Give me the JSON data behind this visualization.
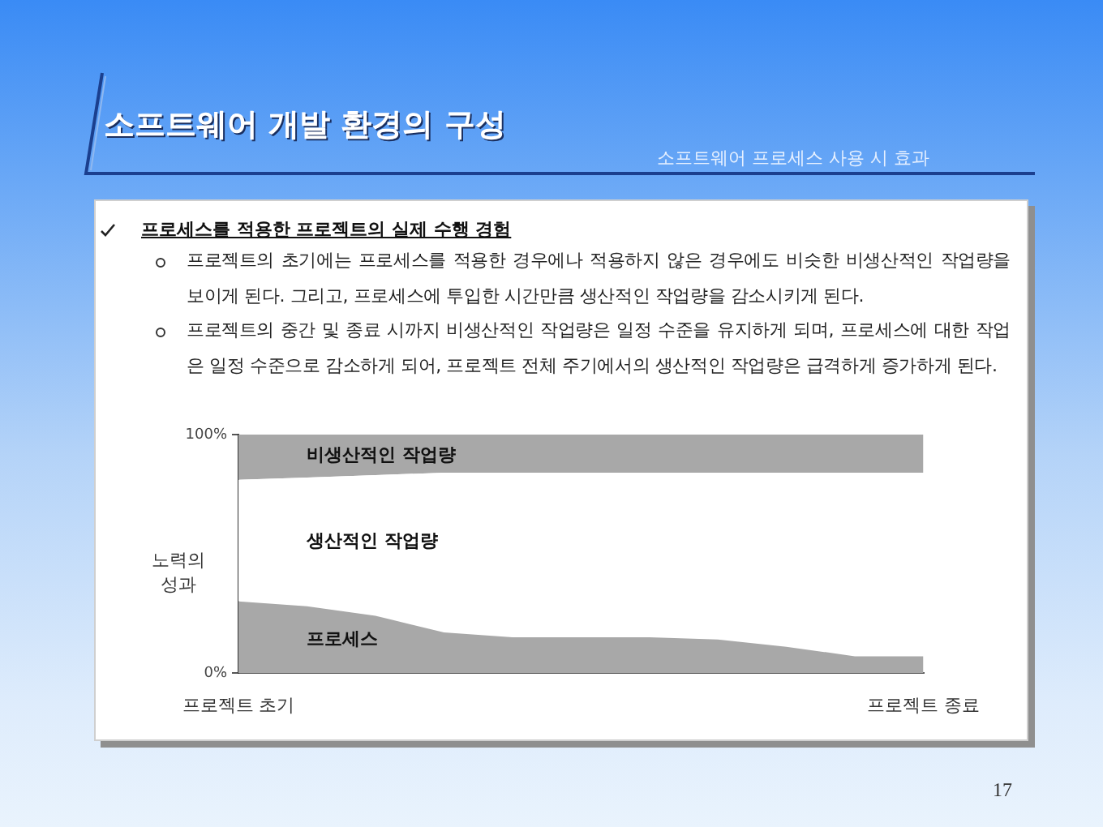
{
  "chart_data": {
    "type": "area",
    "title": "소프트웨어 개발 환경의 구성",
    "subtitle": "소프트웨어 프로세스 사용 시 효과",
    "ylabel": "노력의 성과",
    "stacked": true,
    "marker": "none",
    "categories": [
      "프로젝트 초기",
      null,
      null,
      null,
      null,
      null,
      null,
      null,
      null,
      null,
      "프로젝트 종료"
    ],
    "ylim": [
      0,
      100
    ],
    "yticks": [
      {
        "value": 0,
        "label": "0%"
      },
      {
        "value": 100,
        "label": "100%"
      }
    ],
    "series": [
      {
        "name": "프로세스",
        "color": "#a8a8a8",
        "values": [
          30,
          28,
          24,
          17,
          15,
          15,
          15,
          14,
          11,
          7,
          7
        ]
      },
      {
        "name": "생산적인 작업량",
        "color": "#ffffff",
        "values": [
          51,
          54,
          59,
          67,
          69,
          69,
          69,
          70,
          73,
          77,
          77
        ]
      },
      {
        "name": "비생산적인 작업량",
        "color": "#a8a8a8",
        "values": [
          19,
          18,
          17,
          16,
          16,
          16,
          16,
          16,
          16,
          16,
          16
        ]
      }
    ],
    "annotations": [
      "프로세스를 적용한 프로젝트의 실제 수행 경험",
      "프로젝트의 초기에는 프로세스를 적용한 경우에나 적용하지 않은 경우에도 비슷한 비생산적인 작업량을 보이게 된다. 그리고, 프로세스에 투입한 시간만큼 생산적인 작업량을 감소시키게 된다.",
      "프로젝트의 중간 및 종료 시까지 비생산적인 작업량은 일정 수준을 유지하게 되며, 프로세스에 대한 작업은 일정 수준으로 감소하게 되어, 프로젝트 전체 주기에서의 생산적인 작업량은 급격하게 증가하게 된다.",
      "17"
    ]
  }
}
